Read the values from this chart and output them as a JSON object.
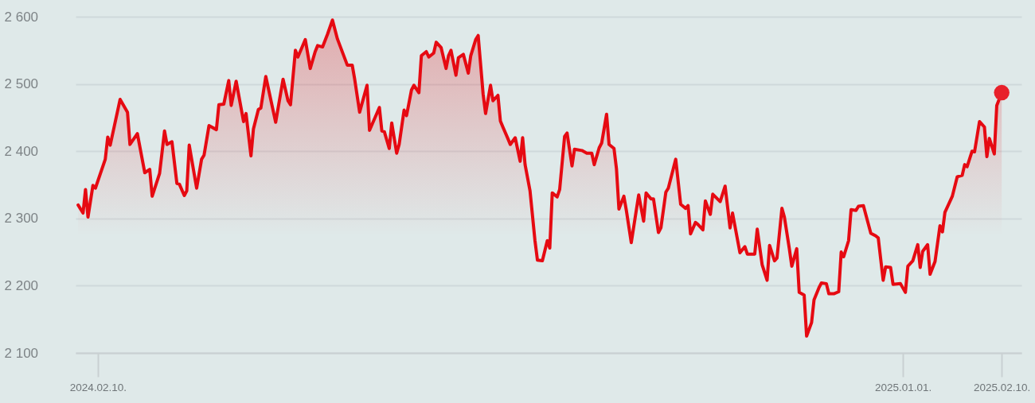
{
  "chart_data": {
    "type": "area",
    "xlim": [
      "2024-02-01",
      "2025-02-18"
    ],
    "xticks": [
      {
        "value": "2024-02-10",
        "label": "2024.02.10."
      },
      {
        "value": "2025-01-01",
        "label": "2025.01.01."
      },
      {
        "value": "2025-02-10",
        "label": "2025.02.10."
      }
    ],
    "ylim": [
      2100,
      2600
    ],
    "yticks": [
      {
        "value": 2100,
        "label": "2 100"
      },
      {
        "value": 2200,
        "label": "2 200"
      },
      {
        "value": 2300,
        "label": "2 300"
      },
      {
        "value": 2400,
        "label": "2 400"
      },
      {
        "value": 2500,
        "label": "2 500"
      },
      {
        "value": 2600,
        "label": "2 600"
      }
    ],
    "grid": "y",
    "line_style": "solid",
    "series": [
      {
        "color": "#e60a12",
        "marker": "none",
        "x": [
          "2024-02-02",
          "2024-02-04",
          "2024-02-05",
          "2024-02-06",
          "2024-02-08",
          "2024-02-09",
          "2024-02-13",
          "2024-02-14",
          "2024-02-15",
          "2024-02-19",
          "2024-02-22",
          "2024-02-23",
          "2024-02-26",
          "2024-02-29",
          "2024-03-02",
          "2024-03-03",
          "2024-03-06",
          "2024-03-08",
          "2024-03-09",
          "2024-03-11",
          "2024-03-13",
          "2024-03-14",
          "2024-03-16",
          "2024-03-17",
          "2024-03-18",
          "2024-03-21",
          "2024-03-23",
          "2024-03-24",
          "2024-03-26",
          "2024-03-29",
          "2024-03-30",
          "2024-04-01",
          "2024-04-03",
          "2024-04-04",
          "2024-04-06",
          "2024-04-09",
          "2024-04-10",
          "2024-04-12",
          "2024-04-13",
          "2024-04-15",
          "2024-04-16",
          "2024-04-18",
          "2024-04-22",
          "2024-04-25",
          "2024-04-27",
          "2024-04-28",
          "2024-04-30",
          "2024-05-01",
          "2024-05-04",
          "2024-05-06",
          "2024-05-08",
          "2024-05-09",
          "2024-05-11",
          "2024-05-13",
          "2024-05-15",
          "2024-05-17",
          "2024-05-21",
          "2024-05-23",
          "2024-05-24",
          "2024-05-26",
          "2024-05-29",
          "2024-05-30",
          "2024-06-03",
          "2024-06-04",
          "2024-06-05",
          "2024-06-07",
          "2024-06-08",
          "2024-06-10",
          "2024-06-11",
          "2024-06-13",
          "2024-06-14",
          "2024-06-16",
          "2024-06-17",
          "2024-06-19",
          "2024-06-20",
          "2024-06-22",
          "2024-06-23",
          "2024-06-25",
          "2024-06-26",
          "2024-06-28",
          "2024-06-30",
          "2024-07-01",
          "2024-07-02",
          "2024-07-04",
          "2024-07-05",
          "2024-07-07",
          "2024-07-09",
          "2024-07-10",
          "2024-07-12",
          "2024-07-13",
          "2024-07-15",
          "2024-07-16",
          "2024-07-18",
          "2024-07-19",
          "2024-07-21",
          "2024-07-22",
          "2024-07-23",
          "2024-07-25",
          "2024-07-26",
          "2024-07-28",
          "2024-07-30",
          "2024-07-31",
          "2024-08-01",
          "2024-08-03",
          "2024-08-05",
          "2024-08-06",
          "2024-08-08",
          "2024-08-10",
          "2024-08-11",
          "2024-08-12",
          "2024-08-14",
          "2024-08-15",
          "2024-08-17",
          "2024-08-18",
          "2024-08-20",
          "2024-08-21",
          "2024-08-24",
          "2024-08-26",
          "2024-08-28",
          "2024-08-29",
          "2024-08-31",
          "2024-09-01",
          "2024-09-03",
          "2024-09-04",
          "2024-09-06",
          "2024-09-07",
          "2024-09-08",
          "2024-09-10",
          "2024-09-11",
          "2024-09-13",
          "2024-09-16",
          "2024-09-18",
          "2024-09-19",
          "2024-09-21",
          "2024-09-22",
          "2024-09-24",
          "2024-09-25",
          "2024-09-27",
          "2024-09-28",
          "2024-10-01",
          "2024-10-03",
          "2024-10-05",
          "2024-10-06",
          "2024-10-07",
          "2024-10-09",
          "2024-10-10",
          "2024-10-12",
          "2024-10-13",
          "2024-10-15",
          "2024-10-16",
          "2024-10-19",
          "2024-10-21",
          "2024-10-23",
          "2024-10-24",
          "2024-10-27",
          "2024-10-29",
          "2024-10-30",
          "2024-11-02",
          "2024-11-03",
          "2024-11-05",
          "2024-11-07",
          "2024-11-08",
          "2024-11-10",
          "2024-11-11",
          "2024-11-13",
          "2024-11-14",
          "2024-11-16",
          "2024-11-17",
          "2024-11-19",
          "2024-11-20",
          "2024-11-22",
          "2024-11-23",
          "2024-11-25",
          "2024-11-26",
          "2024-11-28",
          "2024-11-29",
          "2024-12-01",
          "2024-12-02",
          "2024-12-04",
          "2024-12-06",
          "2024-12-07",
          "2024-12-08",
          "2024-12-10",
          "2024-12-11",
          "2024-12-13",
          "2024-12-14",
          "2024-12-16",
          "2024-12-19",
          "2024-12-21",
          "2024-12-22",
          "2024-12-24",
          "2024-12-25",
          "2024-12-27",
          "2024-12-28",
          "2024-12-31",
          "2025-01-02",
          "2025-01-03",
          "2025-01-05",
          "2025-01-07",
          "2025-01-08",
          "2025-01-09",
          "2025-01-11",
          "2025-01-12",
          "2025-01-14",
          "2025-01-16",
          "2025-01-17",
          "2025-01-18",
          "2025-01-20",
          "2025-01-21",
          "2025-01-23",
          "2025-01-25",
          "2025-01-26",
          "2025-01-27",
          "2025-01-29",
          "2025-01-30",
          "2025-02-01",
          "2025-02-03",
          "2025-02-04",
          "2025-02-05",
          "2025-02-07",
          "2025-02-08",
          "2025-02-10"
        ],
        "values": [
          2320,
          2308,
          2343,
          2302,
          2349,
          2345,
          2388,
          2421,
          2409,
          2477,
          2458,
          2410,
          2426,
          2368,
          2373,
          2333,
          2367,
          2430,
          2410,
          2414,
          2352,
          2351,
          2334,
          2341,
          2409,
          2345,
          2388,
          2394,
          2438,
          2432,
          2469,
          2470,
          2505,
          2468,
          2504,
          2444,
          2456,
          2393,
          2433,
          2462,
          2464,
          2511,
          2443,
          2507,
          2475,
          2469,
          2550,
          2540,
          2566,
          2523,
          2548,
          2557,
          2555,
          2574,
          2595,
          2567,
          2528,
          2528,
          2507,
          2458,
          2498,
          2431,
          2465,
          2430,
          2429,
          2404,
          2442,
          2397,
          2410,
          2461,
          2453,
          2491,
          2498,
          2487,
          2542,
          2548,
          2540,
          2546,
          2562,
          2554,
          2523,
          2542,
          2550,
          2513,
          2539,
          2544,
          2516,
          2542,
          2566,
          2572,
          2485,
          2456,
          2498,
          2475,
          2483,
          2445,
          2436,
          2419,
          2410,
          2420,
          2385,
          2420,
          2380,
          2341,
          2267,
          2238,
          2237,
          2267,
          2256,
          2338,
          2332,
          2343,
          2422,
          2427,
          2378,
          2403,
          2401,
          2397,
          2397,
          2380,
          2405,
          2412,
          2455,
          2410,
          2404,
          2374,
          2314,
          2333,
          2312,
          2264,
          2335,
          2296,
          2338,
          2329,
          2329,
          2279,
          2286,
          2339,
          2345,
          2388,
          2321,
          2315,
          2319,
          2277,
          2294,
          2291,
          2283,
          2326,
          2306,
          2336,
          2325,
          2348,
          2286,
          2308,
          2249,
          2258,
          2247,
          2247,
          2284,
          2231,
          2208,
          2260,
          2237,
          2241,
          2315,
          2302,
          2255,
          2229,
          2255,
          2190,
          2186,
          2125,
          2145,
          2179,
          2197,
          2204,
          2203,
          2188,
          2188,
          2191,
          2250,
          2243,
          2267,
          2313,
          2312,
          2318,
          2319,
          2278,
          2274,
          2271,
          2208,
          2228,
          2227,
          2202,
          2203,
          2190,
          2229,
          2237,
          2261,
          2227,
          2251,
          2261,
          2217,
          2236,
          2289,
          2280,
          2309,
          2325,
          2333,
          2362,
          2364,
          2380,
          2377,
          2400,
          2399,
          2444,
          2436,
          2392,
          2419,
          2396,
          2468,
          2487
        ]
      },
      {
        "type": "scatter",
        "color": "#e8202a",
        "x": [
          "2025-02-10"
        ],
        "values": [
          2487
        ]
      }
    ]
  }
}
